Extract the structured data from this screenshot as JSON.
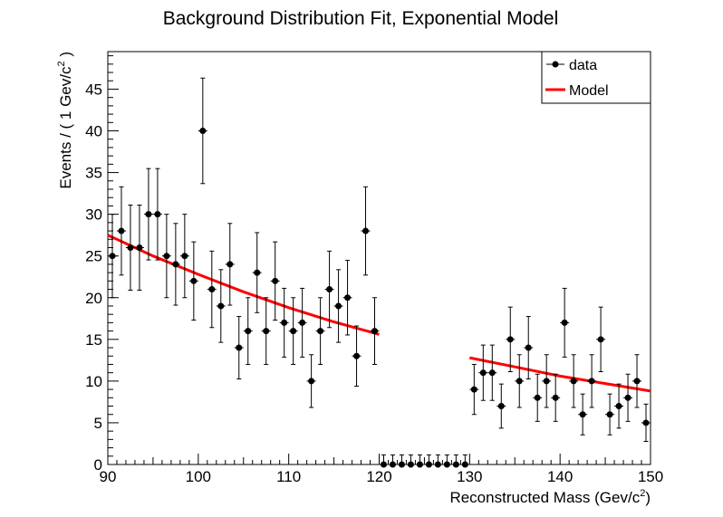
{
  "chart_data": {
    "type": "scatter",
    "title": "Background Distribution Fit, Exponential Model",
    "xlabel": "Reconstructed Mass (Gev/c",
    "xlabel_sup": "2",
    "xlabel_end": ")",
    "ylabel": "Events / ( 1 Gev/c",
    "ylabel_sup": "2",
    "ylabel_end": " )",
    "xlim": [
      90,
      150
    ],
    "ylim": [
      0,
      49.5
    ],
    "x_ticks": [
      90,
      100,
      110,
      120,
      130,
      140,
      150
    ],
    "y_ticks": [
      0,
      5,
      10,
      15,
      20,
      25,
      30,
      35,
      40,
      45
    ],
    "grid": false,
    "legend_position": "top-right",
    "legend": [
      {
        "label": "data",
        "style": "marker",
        "color": "#000000"
      },
      {
        "label": "Model",
        "style": "line",
        "color": "#ff0000"
      }
    ],
    "series": [
      {
        "name": "data",
        "type": "errorbar",
        "color": "#000000",
        "x": [
          90.5,
          91.5,
          92.5,
          93.5,
          94.5,
          95.5,
          96.5,
          97.5,
          98.5,
          99.5,
          100.5,
          101.5,
          102.5,
          103.5,
          104.5,
          105.5,
          106.5,
          107.5,
          108.5,
          109.5,
          110.5,
          111.5,
          112.5,
          113.5,
          114.5,
          115.5,
          116.5,
          117.5,
          118.5,
          119.5,
          120.5,
          121.5,
          122.5,
          123.5,
          124.5,
          125.5,
          126.5,
          127.5,
          128.5,
          129.5,
          130.5,
          131.5,
          132.5,
          133.5,
          134.5,
          135.5,
          136.5,
          137.5,
          138.5,
          139.5,
          140.5,
          141.5,
          142.5,
          143.5,
          144.5,
          145.5,
          146.5,
          147.5,
          148.5,
          149.5
        ],
        "y": [
          25,
          28,
          26,
          26,
          30,
          30,
          25,
          24,
          25,
          22,
          40,
          21,
          19,
          24,
          14,
          16,
          23,
          16,
          22,
          17,
          16,
          17,
          10,
          16,
          21,
          19,
          20,
          13,
          28,
          16,
          0,
          0,
          0,
          0,
          0,
          0,
          0,
          0,
          0,
          0,
          9,
          11,
          11,
          7,
          15,
          10,
          14,
          8,
          10,
          8,
          17,
          10,
          6,
          10,
          15,
          6,
          7,
          8,
          10,
          5
        ]
      },
      {
        "name": "Model",
        "type": "line",
        "color": "#ff0000",
        "segments": [
          {
            "x": [
              90,
              95,
              100,
              105,
              110,
              115,
              120
            ],
            "y": [
              27.5,
              25.0,
              22.8,
              20.7,
              18.8,
              17.1,
              15.6
            ]
          },
          {
            "x": [
              130,
              135,
              140,
              145,
              150
            ],
            "y": [
              12.8,
              11.7,
              10.6,
              9.7,
              8.8
            ]
          }
        ]
      }
    ]
  }
}
